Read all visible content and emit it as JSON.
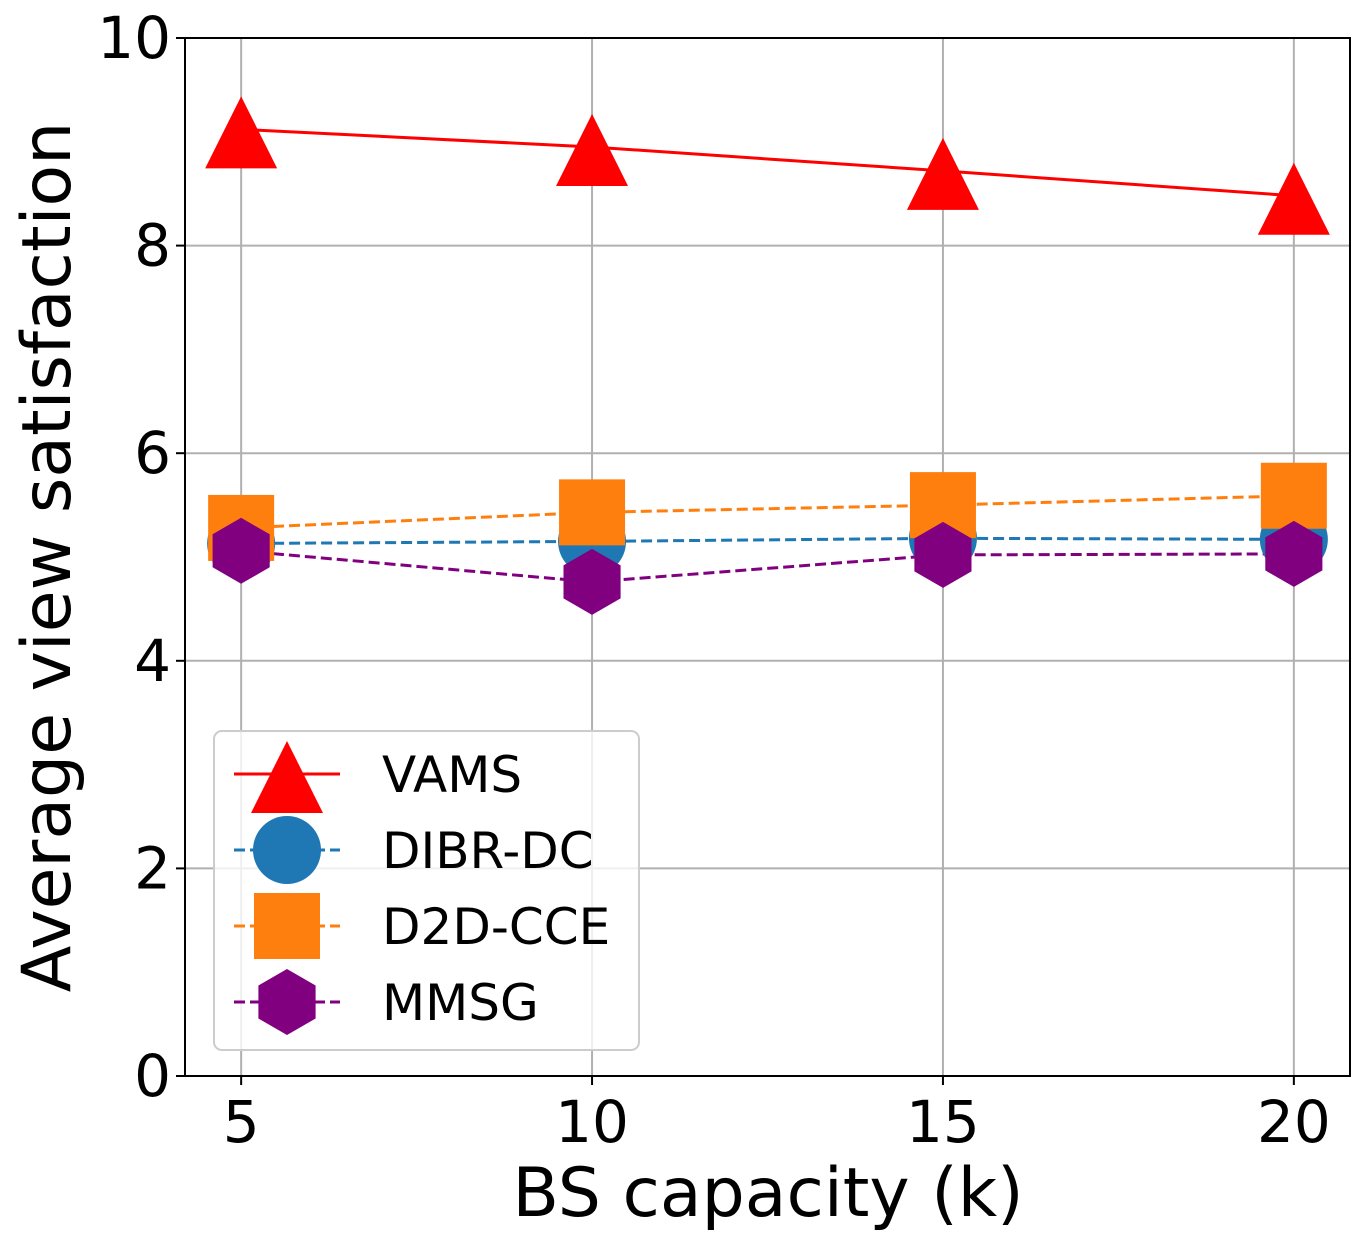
{
  "chart_data": {
    "type": "line",
    "title": "",
    "xlabel": "BS capacity (k)",
    "ylabel": "Average view satisfaction",
    "x": [
      5,
      10,
      15,
      20
    ],
    "xticks": [
      "5",
      "10",
      "15",
      "20"
    ],
    "yticks": [
      "0",
      "2",
      "4",
      "6",
      "8",
      "10"
    ],
    "xlim": [
      4.2,
      20.8
    ],
    "ylim": [
      0,
      10
    ],
    "grid": true,
    "legend_position": "lower-left",
    "series": [
      {
        "name": "VAMS",
        "values": [
          9.12,
          8.95,
          8.72,
          8.48
        ],
        "color": "#ff0000",
        "marker": "triangle",
        "linestyle": "solid"
      },
      {
        "name": "DIBR-DC",
        "values": [
          5.13,
          5.15,
          5.18,
          5.17
        ],
        "color": "#1f77b4",
        "marker": "circle",
        "linestyle": "dashed"
      },
      {
        "name": "D2D-CCE",
        "values": [
          5.28,
          5.43,
          5.5,
          5.59
        ],
        "color": "#ff7f0e",
        "marker": "square",
        "linestyle": "dashed"
      },
      {
        "name": "MMSG",
        "values": [
          5.06,
          4.76,
          5.02,
          5.03
        ],
        "color": "#800080",
        "marker": "hexagon",
        "linestyle": "dashed"
      }
    ]
  }
}
